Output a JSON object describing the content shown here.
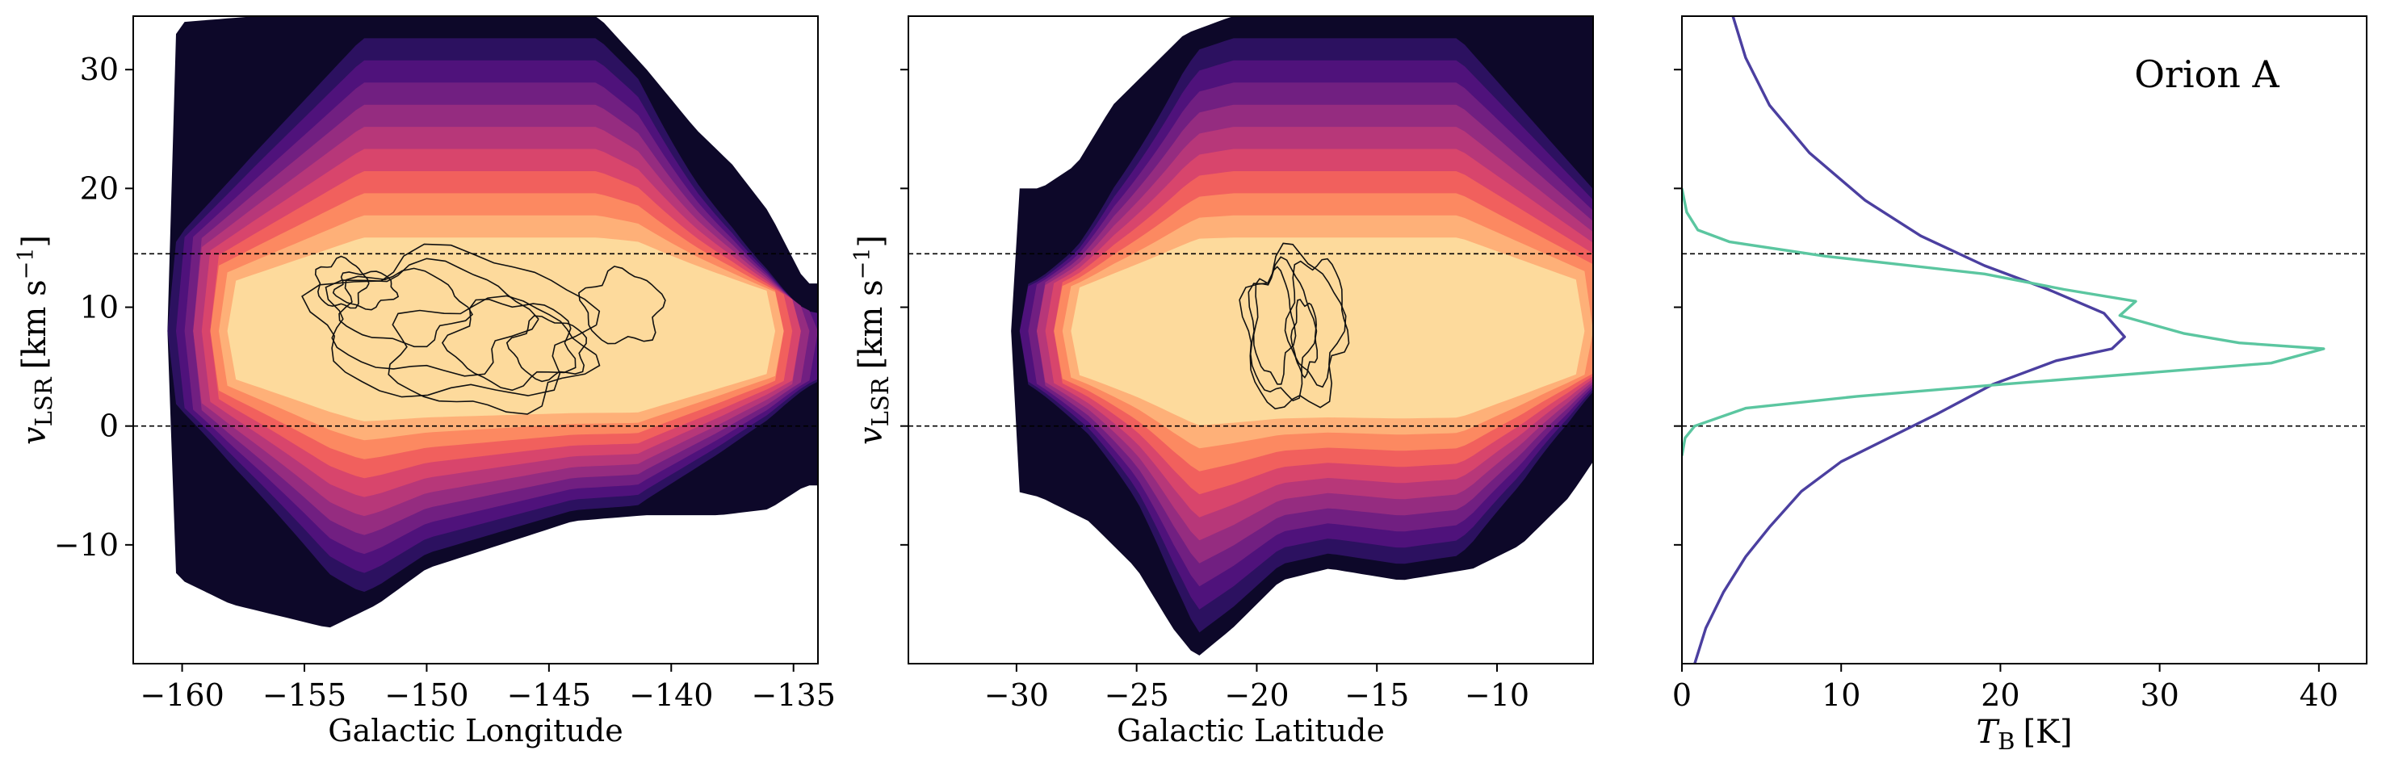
{
  "chart_data": [
    {
      "type": "heatmap",
      "panel": "longitude-velocity",
      "xlabel": "Galactic Longitude",
      "ylabel_main": "v",
      "ylabel_sub": "LSR",
      "ylabel_units": "[km s",
      "ylabel_exp": "−1",
      "ylabel_close": "]",
      "xlim": [
        -162,
        -134
      ],
      "ylim": [
        -20,
        34.5
      ],
      "xticks": [
        -160,
        -155,
        -150,
        -145,
        -140,
        -135
      ],
      "xtick_labels": [
        "−160",
        "−155",
        "−150",
        "−145",
        "−140",
        "−135"
      ],
      "yticks": [
        -10,
        0,
        10,
        20,
        30
      ],
      "ytick_labels": [
        "−10",
        "0",
        "10",
        "20",
        "30"
      ],
      "dashed_lines": [
        0,
        14.5
      ],
      "colormap": [
        "#0d0829",
        "#2c1160",
        "#4f127b",
        "#711f81",
        "#952c80",
        "#b73779",
        "#d8456c",
        "#f1605d",
        "#fc8961",
        "#feb078",
        "#fdda9c"
      ],
      "envelope": {
        "v_low": [
          [
            -162,
            -8
          ],
          [
            -160,
            -13
          ],
          [
            -158,
            -15
          ],
          [
            -156,
            -16
          ],
          [
            -154,
            -17
          ],
          [
            -152,
            -15
          ],
          [
            -150,
            -12
          ],
          [
            -147,
            -10
          ],
          [
            -144,
            -8
          ],
          [
            -141,
            -7.5
          ],
          [
            -138,
            -7.5
          ],
          [
            -136,
            -7
          ],
          [
            -134.5,
            -5
          ]
        ],
        "v_high": [
          [
            -162,
            26
          ],
          [
            -160,
            34
          ],
          [
            -157,
            34.5
          ],
          [
            -150,
            34.5
          ],
          [
            -145,
            34.5
          ],
          [
            -143,
            34.5
          ],
          [
            -141,
            30
          ],
          [
            -139,
            25
          ],
          [
            -137.5,
            22
          ],
          [
            -136,
            18
          ],
          [
            -134.5,
            12
          ]
        ]
      },
      "peak": {
        "l_center": -147,
        "v_center": 8,
        "l_halfwidth": 13.5,
        "v_halfwidth": 6
      }
    },
    {
      "type": "heatmap",
      "panel": "latitude-velocity",
      "xlabel": "Galactic Latitude",
      "ylabel_main": "v",
      "ylabel_sub": "LSR",
      "ylabel_units": "[km s",
      "ylabel_exp": "−1",
      "ylabel_close": "]",
      "xlim": [
        -34.5,
        -6
      ],
      "ylim": [
        -20,
        34.5
      ],
      "xticks": [
        -30,
        -25,
        -20,
        -15,
        -10
      ],
      "xtick_labels": [
        "−30",
        "−25",
        "−20",
        "−15",
        "−10"
      ],
      "dashed_lines": [
        0,
        14.5
      ],
      "envelope": {
        "v_low": [
          [
            -34.5,
            -1
          ],
          [
            -33,
            -2
          ],
          [
            -31,
            -5
          ],
          [
            -29,
            -6
          ],
          [
            -27,
            -8
          ],
          [
            -25,
            -12
          ],
          [
            -23.5,
            -17
          ],
          [
            -22.5,
            -19.5
          ],
          [
            -21,
            -17
          ],
          [
            -19,
            -13
          ],
          [
            -17,
            -12
          ],
          [
            -14,
            -13
          ],
          [
            -11,
            -12
          ],
          [
            -9,
            -10
          ],
          [
            -7,
            -6
          ],
          [
            -6,
            -3
          ]
        ],
        "v_high": [
          [
            -34.5,
            14
          ],
          [
            -33,
            17
          ],
          [
            -31,
            20
          ],
          [
            -29,
            20
          ],
          [
            -27.5,
            22
          ],
          [
            -26,
            27
          ],
          [
            -24.5,
            30
          ],
          [
            -23,
            33
          ],
          [
            -21,
            34.5
          ],
          [
            -6,
            34.5
          ]
        ]
      },
      "peak": {
        "b_center": -17,
        "v_center": 8,
        "b_halfwidth": 13,
        "v_halfwidth": 6
      }
    },
    {
      "type": "line",
      "panel": "spectrum",
      "xlabel_main": "T",
      "xlabel_sub": "B",
      "xlabel_units": "[K]",
      "annotation": "Orion A",
      "xlim": [
        0,
        43
      ],
      "ylim": [
        -20,
        34.5
      ],
      "xticks": [
        0,
        10,
        20,
        30,
        40
      ],
      "xtick_labels": [
        "0",
        "10",
        "20",
        "30",
        "40"
      ],
      "dashed_lines": [
        0,
        14.5
      ],
      "colors": {
        "broad": "#4b3fa0",
        "narrow": "#5bc6a0"
      },
      "series": [
        {
          "points": [
            [
              0.8,
              -20
            ],
            [
              1.5,
              -17
            ],
            [
              2.6,
              -14
            ],
            [
              4,
              -11
            ],
            [
              5.5,
              -8.5
            ],
            [
              7.5,
              -5.5
            ],
            [
              10,
              -3
            ],
            [
              13,
              -1
            ],
            [
              16,
              1
            ],
            [
              19.5,
              3.5
            ],
            [
              23.5,
              5.5
            ],
            [
              27,
              6.5
            ],
            [
              27.8,
              7.5
            ],
            [
              26.5,
              9.5
            ],
            [
              23,
              11.5
            ],
            [
              19,
              13.5
            ],
            [
              15,
              16
            ],
            [
              11.5,
              19
            ],
            [
              8,
              23
            ],
            [
              5.5,
              27
            ],
            [
              4,
              31
            ],
            [
              3.2,
              34.5
            ]
          ]
        },
        {
          "points": [
            [
              0,
              -2.5
            ],
            [
              0.2,
              -1
            ],
            [
              0.8,
              0
            ],
            [
              4,
              1.5
            ],
            [
              11,
              2.5
            ],
            [
              20,
              3.5
            ],
            [
              37,
              5.3
            ],
            [
              40.3,
              6.5
            ],
            [
              35,
              7
            ],
            [
              31.5,
              7.8
            ],
            [
              27.5,
              9.3
            ],
            [
              28.5,
              10.5
            ],
            [
              24,
              11.5
            ],
            [
              19,
              12.8
            ],
            [
              9,
              14.3
            ],
            [
              3,
              15.5
            ],
            [
              1,
              16.5
            ],
            [
              0.3,
              18
            ],
            [
              0,
              20
            ]
          ]
        }
      ]
    }
  ]
}
